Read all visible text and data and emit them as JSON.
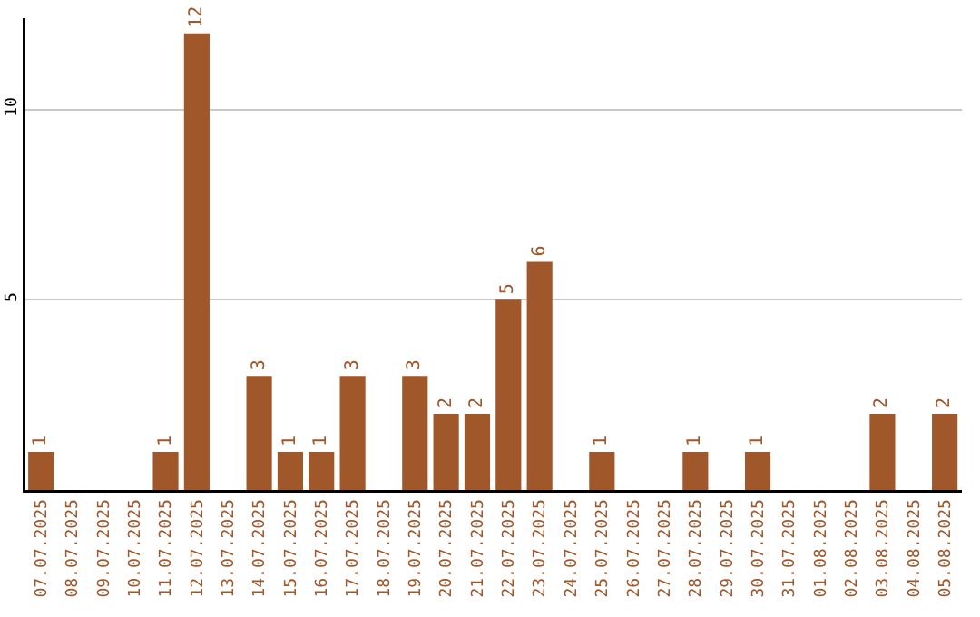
{
  "chart_data": {
    "type": "bar",
    "categories": [
      "07.07.2025",
      "08.07.2025",
      "09.07.2025",
      "10.07.2025",
      "11.07.2025",
      "12.07.2025",
      "13.07.2025",
      "14.07.2025",
      "15.07.2025",
      "16.07.2025",
      "17.07.2025",
      "18.07.2025",
      "19.07.2025",
      "20.07.2025",
      "21.07.2025",
      "22.07.2025",
      "23.07.2025",
      "24.07.2025",
      "25.07.2025",
      "26.07.2025",
      "27.07.2025",
      "28.07.2025",
      "29.07.2025",
      "30.07.2025",
      "31.07.2025",
      "01.08.2025",
      "02.08.2025",
      "03.08.2025",
      "04.08.2025",
      "05.08.2025"
    ],
    "values": [
      1,
      null,
      null,
      null,
      1,
      12,
      null,
      3,
      1,
      1,
      3,
      null,
      3,
      2,
      2,
      5,
      6,
      null,
      1,
      null,
      null,
      1,
      null,
      1,
      null,
      null,
      null,
      2,
      null,
      2
    ],
    "color": "#a0582a",
    "ylim": [
      0,
      12.4
    ],
    "yticks": [
      5,
      10
    ],
    "grid": "y",
    "data_labels": true,
    "legend": false
  }
}
